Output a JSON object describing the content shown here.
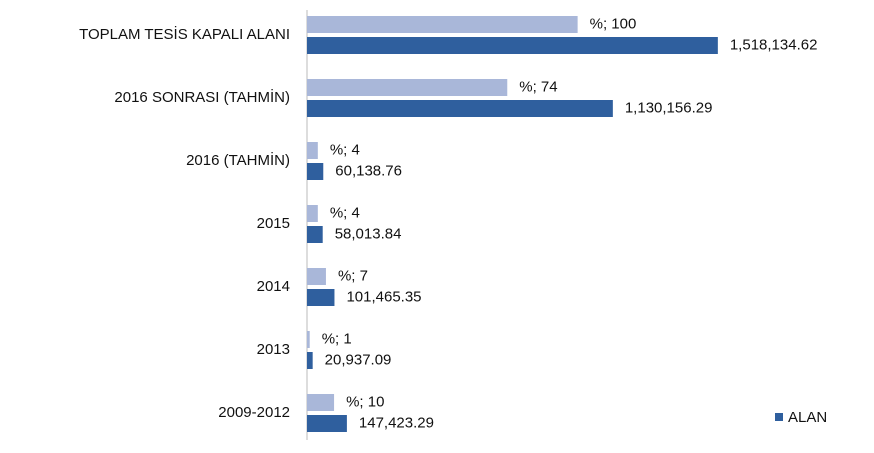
{
  "chart_data": {
    "type": "hbar",
    "categories": [
      "TOPLAM  TESİS KAPALI ALANI",
      "2016 SONRASI (TAHMİN)",
      "2016 (TAHMİN)",
      "2015",
      "2014",
      "2013",
      "2009-2012"
    ],
    "series": [
      {
        "color": "#a9b7d9",
        "xlim": [
          0,
          160
        ],
        "values": [
          100,
          74,
          4,
          4,
          7,
          1,
          10
        ],
        "value_labels": [
          "%; 100",
          "%; 74",
          "%; 4",
          "%; 4",
          "%; 7",
          "%; 1",
          "%; 10"
        ]
      },
      {
        "name": "ALAN",
        "color": "#2f5f9e",
        "xlim": [
          0,
          1600000
        ],
        "values": [
          1518134.62,
          1130156.29,
          60138.76,
          58013.84,
          101465.35,
          20937.09,
          147423.29
        ],
        "value_labels": [
          "1,518,134.62",
          "1,130,156.29",
          "60,138.76",
          "58,013.84",
          "101,465.35",
          "20,937.09",
          "147,423.29"
        ]
      }
    ],
    "legend": "bottom-right"
  }
}
